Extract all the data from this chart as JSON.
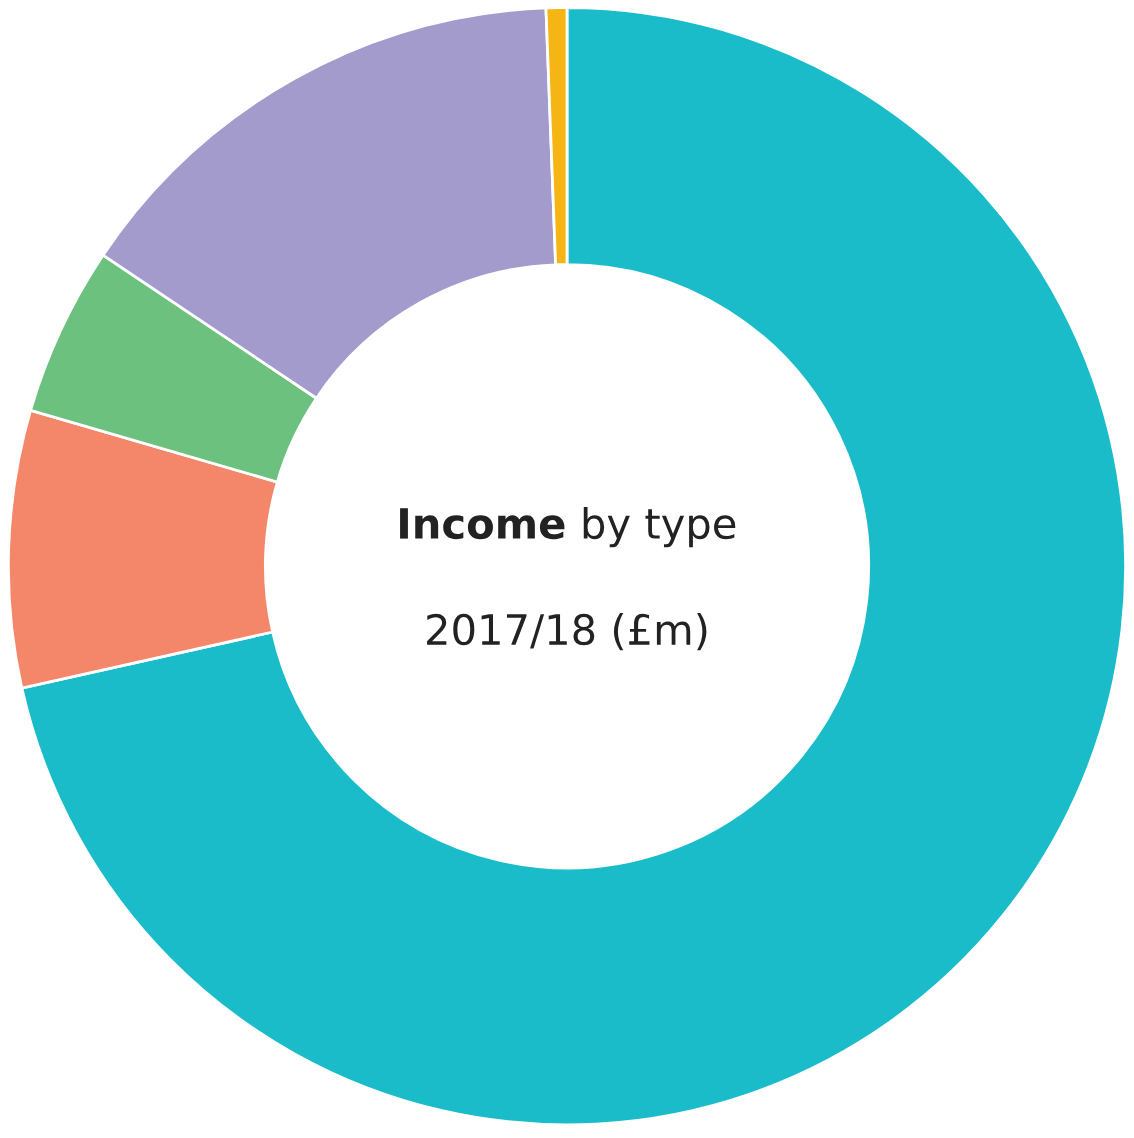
{
  "chart_data": {
    "type": "donut",
    "title": "Income by type",
    "subtitle": "2017/18 (£m)",
    "categories": [
      null,
      null,
      null,
      null,
      null
    ],
    "values": [
      71.5,
      8.0,
      4.9,
      15.0,
      0.6
    ],
    "colors": [
      "#1bbcc9",
      "#f4866a",
      "#6cc17e",
      "#a39bcb",
      "#f5b615"
    ]
  }
}
